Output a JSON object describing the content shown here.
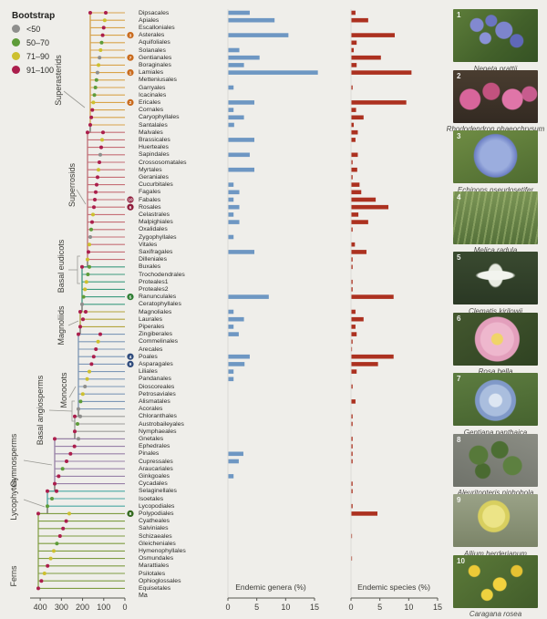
{
  "legend": {
    "title": "Bootstrap",
    "items": [
      {
        "label": "<50",
        "color": "#8E8E8C"
      },
      {
        "label": "50–70",
        "color": "#5E9C39"
      },
      {
        "label": "71–90",
        "color": "#CDC02E"
      },
      {
        "label": "91–100",
        "color": "#AB1E4C"
      }
    ]
  },
  "tree": {
    "axis": {
      "unit": "Ma",
      "ticks": [
        400,
        300,
        200,
        100,
        0
      ]
    },
    "clades": [
      {
        "label": "Superasterids",
        "color": "#D8A349",
        "start": 0,
        "end": 15
      },
      {
        "label": "Superrosids",
        "color": "#C56E76",
        "start": 16,
        "end": 33
      },
      {
        "label": "Basal eudicots",
        "color": "#3D9B7F",
        "start": 34,
        "end": 39
      },
      {
        "label": "Magnoliids",
        "color": "#B3A43C",
        "start": 40,
        "end": 42
      },
      {
        "label": "Monocots",
        "color": "#7E98B7",
        "start": 43,
        "end": 53
      },
      {
        "label": "Basal angiosperms",
        "color": "#9C9C99",
        "start": 54,
        "end": 56
      },
      {
        "label": "Gymnosperms",
        "color": "#9881A8",
        "start": 57,
        "end": 63
      },
      {
        "label": "Lycophytes",
        "color": "#48A7A2",
        "start": 64,
        "end": 66
      },
      {
        "label": "Ferns",
        "color": "#7E9C41",
        "start": 67,
        "end": 77
      }
    ],
    "bootstrap_codes": [
      3,
      2,
      3,
      3,
      1,
      2,
      0,
      2,
      0,
      1,
      1,
      1,
      2,
      3,
      3,
      3,
      3,
      2,
      3,
      0,
      3,
      2,
      3,
      3,
      3,
      3,
      3,
      2,
      3,
      1,
      0,
      2,
      3,
      2,
      1,
      1,
      2,
      2,
      1,
      0,
      3,
      3,
      3,
      3,
      2,
      3,
      3,
      3,
      2,
      2,
      0,
      2,
      1,
      0,
      0,
      1,
      3,
      0,
      3,
      3,
      3,
      1,
      3,
      3,
      3,
      1,
      1,
      2,
      3,
      3,
      3,
      1,
      2,
      2,
      3,
      2,
      3,
      3
    ],
    "badges": [
      {
        "index": 3,
        "num": "3",
        "color": "#C96A1C"
      },
      {
        "index": 6,
        "num": "7",
        "color": "#C96A1C"
      },
      {
        "index": 8,
        "num": "1",
        "color": "#C96A1C"
      },
      {
        "index": 12,
        "num": "2",
        "color": "#C96A1C"
      },
      {
        "index": 25,
        "num": "10",
        "color": "#8F1D3C"
      },
      {
        "index": 26,
        "num": "6",
        "color": "#8F1D3C"
      },
      {
        "index": 38,
        "num": "5",
        "color": "#2E7D32"
      },
      {
        "index": 46,
        "num": "4",
        "color": "#2F4B7C"
      },
      {
        "index": 47,
        "num": "9",
        "color": "#2F4B7C"
      },
      {
        "index": 67,
        "num": "8",
        "color": "#33691E"
      }
    ]
  },
  "chart_data": {
    "type": "bar",
    "categories": [
      "Dipsacales",
      "Apiales",
      "Escalloniales",
      "Asterales",
      "Aquifoliales",
      "Solanales",
      "Gentianales",
      "Boraginales",
      "Lamiales",
      "Metteniusales",
      "Garryales",
      "Icacinales",
      "Ericales",
      "Cornales",
      "Caryophyllales",
      "Santalales",
      "Malvales",
      "Brassicales",
      "Huerteales",
      "Sapindales",
      "Crossosomatales",
      "Myrtales",
      "Geraniales",
      "Cucurbitales",
      "Fagales",
      "Fabales",
      "Rosales",
      "Celastrales",
      "Malpighiales",
      "Oxalidales",
      "Zygophyllales",
      "Vitales",
      "Saxifragales",
      "Dilleniales",
      "Buxales",
      "Trochodendrales",
      "Proteales1",
      "Proteales2",
      "Ranunculales",
      "Ceratophyllales",
      "Magnoliales",
      "Laurales",
      "Piperales",
      "Zingiberales",
      "Commelinales",
      "Arecales",
      "Poales",
      "Asparagales",
      "Liliales",
      "Pandanales",
      "Dioscoreales",
      "Petrosaviales",
      "Alismatales",
      "Acorales",
      "Chloranthales",
      "Austrobaileyales",
      "Nymphaeales",
      "Gnetales",
      "Ephedrales",
      "Pinales",
      "Cupressales",
      "Araucariales",
      "Ginkgoales",
      "Cycadales",
      "Selaginellales",
      "Isoetales",
      "Lycopodiales",
      "Polypodiales",
      "Cyatheales",
      "Salviniales",
      "Schizaeales",
      "Gleicheniales",
      "Hymenophyllales",
      "Osmundales",
      "Marattiales",
      "Psilotales",
      "Ophioglossales",
      "Equisetales"
    ],
    "series": [
      {
        "name": "Endemic genera (%)",
        "color": "#6E97C3",
        "values": [
          3.7,
          8.0,
          0,
          10.4,
          0,
          1.9,
          5.4,
          2.7,
          15.5,
          0,
          0.9,
          0,
          4.5,
          0.9,
          2.7,
          1.0,
          0,
          4.5,
          0,
          3.7,
          0,
          4.5,
          0,
          0.9,
          1.9,
          0.9,
          1.9,
          0.9,
          1.9,
          0,
          0.9,
          0,
          4.5,
          0,
          0,
          0,
          0,
          0,
          7.0,
          0,
          0.9,
          2.7,
          0.9,
          1.8,
          0,
          0,
          3.7,
          2.8,
          0.9,
          0.9,
          0,
          0,
          0,
          0,
          0,
          0,
          0,
          0,
          0,
          2.6,
          1.8,
          0,
          0.9,
          0,
          0,
          0,
          0,
          0,
          0,
          0,
          0,
          0,
          0,
          0,
          0,
          0,
          0,
          0
        ]
      },
      {
        "name": "Endemic species (%)",
        "color": "#AC3120",
        "values": [
          0.7,
          2.9,
          0,
          7.5,
          0.9,
          0.4,
          5.1,
          0.9,
          10.4,
          0,
          0.2,
          0,
          9.5,
          0.8,
          2.1,
          0.4,
          1.1,
          0.7,
          0,
          1.1,
          0.2,
          1.0,
          0.2,
          1.4,
          1.7,
          4.2,
          6.4,
          1.2,
          2.9,
          0.2,
          0,
          0.6,
          2.6,
          0.2,
          0.2,
          0,
          0.2,
          0.2,
          7.3,
          0,
          0.7,
          2.1,
          0.7,
          0.9,
          0.2,
          0.1,
          7.3,
          4.6,
          0.9,
          0,
          0.2,
          0,
          0.7,
          0,
          0.2,
          0.2,
          0,
          0.2,
          0.2,
          0.2,
          0.2,
          0,
          0,
          0.2,
          0.2,
          0,
          0.2,
          4.5,
          0,
          0,
          0.1,
          0,
          0,
          0.1,
          0,
          0,
          0,
          0
        ]
      }
    ],
    "xlim": [
      0,
      15
    ],
    "xticks": [
      0,
      5,
      10,
      15
    ],
    "time_axis": {
      "label": "Ma",
      "ticks": [
        400,
        300,
        200,
        100,
        0
      ]
    }
  },
  "charts": {
    "genera": {
      "title": "Endemic genera (%)"
    },
    "species": {
      "title": "Endemic species (%)"
    }
  },
  "photos": [
    {
      "num": "1",
      "name": "Nepeta prattii"
    },
    {
      "num": "2",
      "name": "Rhododendron phaeochrysum"
    },
    {
      "num": "3",
      "name": "Echinops pseudosetifer"
    },
    {
      "num": "4",
      "name": "Melica radula"
    },
    {
      "num": "5",
      "name": "Clematis kirilowii"
    },
    {
      "num": "6",
      "name": "Rosa bella"
    },
    {
      "num": "7",
      "name": "Gentiana panthaica"
    },
    {
      "num": "8",
      "name": "Aleuritopteris niphobola"
    },
    {
      "num": "9",
      "name": "Allium herderianum"
    },
    {
      "num": "10",
      "name": "Caragana rosea"
    }
  ]
}
